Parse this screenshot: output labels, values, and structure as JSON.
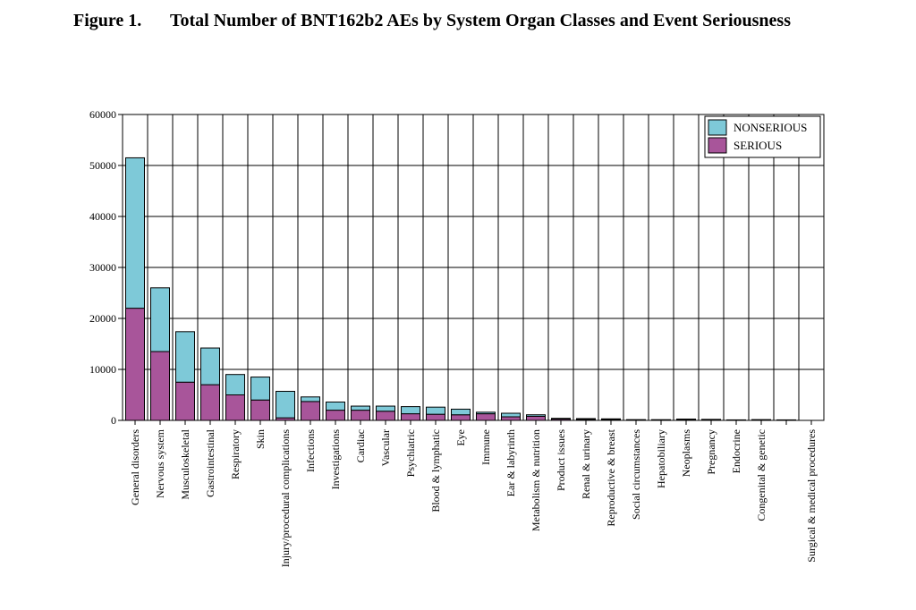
{
  "figure": {
    "label": "Figure 1.",
    "title": "Total Number of BNT162b2 AEs by System Organ Classes and Event Seriousness"
  },
  "colors": {
    "nonserious": "#7ec9d8",
    "serious": "#a8559a",
    "grid": "#000000"
  },
  "chart_data": {
    "type": "bar",
    "stacked": true,
    "title": "Total Number of BNT162b2 AEs by System Organ Classes and Event Seriousness",
    "xlabel": "",
    "ylabel": "",
    "ylim": [
      0,
      60000
    ],
    "yticks": [
      "0",
      "10000",
      "20000",
      "30000",
      "40000",
      "50000",
      "60000"
    ],
    "grid": true,
    "legend": {
      "position": "top-right",
      "entries": [
        "NONSERIOUS",
        "SERIOUS"
      ]
    },
    "categories": [
      "General disorders",
      "Nervous system",
      "Musculoskeletal",
      "Gastrointestinal",
      "Respiratory",
      "Skin",
      "Injury/procedural complications",
      "Infections",
      "Investigations",
      "Cardiac",
      "Vascular",
      "Psychiatric",
      "Blood & lymphatic",
      "Eye",
      "Immune",
      "Ear & labyrinth",
      "Metabolism & nutrition",
      "Product issues",
      "Renal & urinary",
      "Reproductive & breast",
      "Social circumstances",
      "Hepatobiliary",
      "Neoplasms",
      "Pregnancy",
      "Endocrine",
      "Congenital & genetic",
      "",
      "Surgical & medical procedures"
    ],
    "series": [
      {
        "name": "SERIOUS",
        "values": [
          22000,
          13500,
          7500,
          7000,
          5000,
          4000,
          500,
          3700,
          2000,
          2000,
          1800,
          1300,
          1200,
          1100,
          1300,
          700,
          800,
          250,
          200,
          150,
          50,
          60,
          200,
          150,
          50,
          100,
          50,
          0
        ]
      },
      {
        "name": "NONSERIOUS",
        "values": [
          29500,
          12500,
          9900,
          7200,
          4000,
          4500,
          5200,
          900,
          1600,
          800,
          1000,
          1400,
          1400,
          1100,
          300,
          700,
          300,
          150,
          150,
          150,
          100,
          80,
          50,
          50,
          50,
          50,
          50,
          0
        ]
      }
    ]
  }
}
